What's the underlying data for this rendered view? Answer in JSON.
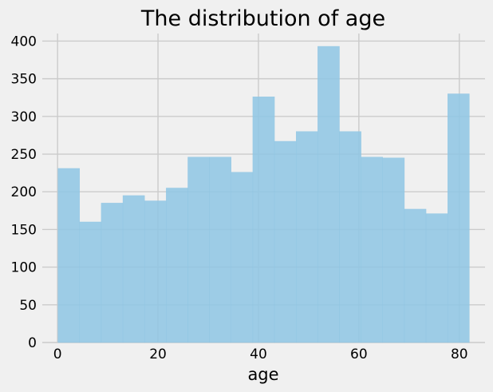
{
  "chart_data": {
    "type": "bar",
    "title": "The distribution of age",
    "xlabel": "age",
    "ylabel": "",
    "grid": true,
    "xlim": [
      -3.04,
      85.12
    ],
    "ylim": [
      0,
      410
    ],
    "x_ticks": [
      0,
      20,
      40,
      60,
      80
    ],
    "y_ticks": [
      0,
      50,
      100,
      150,
      200,
      250,
      300,
      350,
      400
    ],
    "bins": {
      "start": 0.08,
      "end": 82.0,
      "count": 19
    },
    "values": [
      231,
      160,
      185,
      195,
      188,
      205,
      246,
      246,
      226,
      326,
      267,
      280,
      393,
      280,
      246,
      245,
      177,
      171,
      330
    ],
    "colors": {
      "background": "#f0f0f0",
      "bar": "#91c6e4",
      "bar_edge": "#91c6e4",
      "grid": "#cbcbcb",
      "text": "#000000"
    }
  }
}
